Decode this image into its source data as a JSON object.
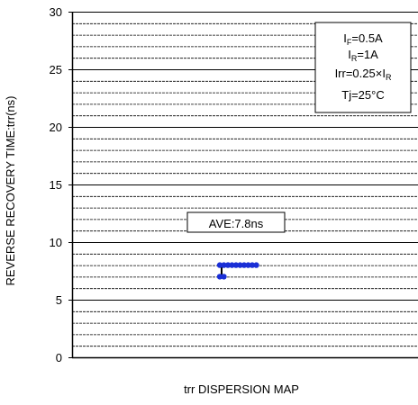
{
  "chart_data": {
    "type": "scatter",
    "title": "",
    "xlabel": "trr DISPERSION MAP",
    "ylabel": "REVERSE RECOVERY TIME:trr(ns)",
    "ylim": [
      0,
      30
    ],
    "yticks": [
      0,
      5,
      10,
      15,
      20,
      25,
      30
    ],
    "minor_grid_step": 1,
    "grid": true,
    "marker_color": "#1a2fd6",
    "points": [
      {
        "y": 8.0
      },
      {
        "y": 8.0
      },
      {
        "y": 8.0
      },
      {
        "y": 8.0
      },
      {
        "y": 8.0
      },
      {
        "y": 8.0
      },
      {
        "y": 8.0
      },
      {
        "y": 8.0
      },
      {
        "y": 8.0
      },
      {
        "y": 8.0
      },
      {
        "y": 7.0
      },
      {
        "y": 7.0
      }
    ],
    "annotations": {
      "average_label": "AVE:7.8ns",
      "conditions": {
        "if_main": "I",
        "if_sub": "F",
        "if_val": "=0.5A",
        "ir_main": "I",
        "ir_sub": "R",
        "ir_val": "=1A",
        "irr_prefix": "Irr=0.25×I",
        "irr_sub": "R",
        "tj": "Tj=25°C"
      }
    }
  }
}
